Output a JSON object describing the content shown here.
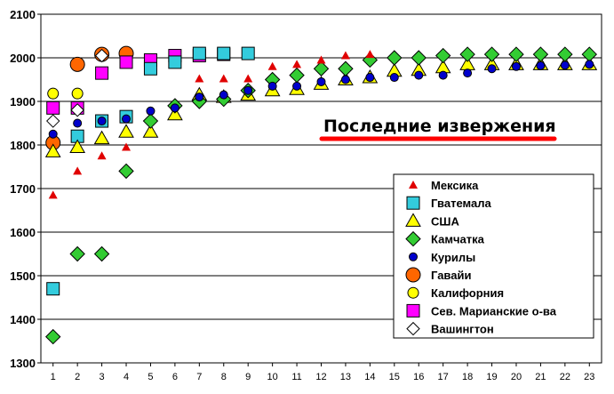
{
  "chart_data": {
    "type": "scatter",
    "title": "",
    "xlabel": "",
    "ylabel": "",
    "xlim": [
      0.5,
      23.5
    ],
    "ylim": [
      1300,
      2100
    ],
    "yticks": [
      1300,
      1400,
      1500,
      1600,
      1700,
      1800,
      1900,
      2000,
      2100
    ],
    "xticks": [
      1,
      2,
      3,
      4,
      5,
      6,
      7,
      8,
      9,
      10,
      11,
      12,
      13,
      14,
      15,
      16,
      17,
      18,
      19,
      20,
      21,
      22,
      23
    ],
    "grid": "horizontal",
    "legend_position": "bottom-right",
    "annotation": "Последние извержения",
    "series": [
      {
        "name": "Мексика",
        "marker": "triangle-small",
        "color": "#e00000",
        "points": [
          [
            1,
            1685
          ],
          [
            2,
            1740
          ],
          [
            3,
            1775
          ],
          [
            4,
            1795
          ],
          [
            7,
            1952
          ],
          [
            8,
            1952
          ],
          [
            9,
            1952
          ],
          [
            10,
            1980
          ],
          [
            11,
            1985
          ],
          [
            12,
            1995
          ],
          [
            13,
            2005
          ],
          [
            14,
            2008
          ]
        ]
      },
      {
        "name": "Гватемала",
        "marker": "square",
        "color": "#33ccdd",
        "points": [
          [
            1,
            1470
          ],
          [
            2,
            1820
          ],
          [
            3,
            1855
          ],
          [
            4,
            1865
          ],
          [
            5,
            1975
          ],
          [
            6,
            1990
          ],
          [
            7,
            2010
          ],
          [
            8,
            2010
          ],
          [
            9,
            2010
          ]
        ]
      },
      {
        "name": "США",
        "marker": "triangle",
        "color": "#ffff00",
        "points": [
          [
            1,
            1785
          ],
          [
            2,
            1795
          ],
          [
            3,
            1815
          ],
          [
            4,
            1830
          ],
          [
            5,
            1830
          ],
          [
            6,
            1870
          ],
          [
            7,
            1915
          ],
          [
            8,
            1910
          ],
          [
            9,
            1915
          ],
          [
            10,
            1925
          ],
          [
            11,
            1928
          ],
          [
            12,
            1940
          ],
          [
            13,
            1950
          ],
          [
            14,
            1955
          ],
          [
            15,
            1970
          ],
          [
            16,
            1972
          ],
          [
            17,
            1978
          ],
          [
            18,
            1985
          ],
          [
            19,
            1985
          ],
          [
            20,
            1985
          ],
          [
            21,
            1985
          ],
          [
            22,
            1985
          ],
          [
            23,
            1985
          ]
        ]
      },
      {
        "name": "Камчатка",
        "marker": "diamond",
        "color": "#33cc33",
        "points": [
          [
            1,
            1360
          ],
          [
            2,
            1550
          ],
          [
            3,
            1550
          ],
          [
            4,
            1740
          ],
          [
            5,
            1855
          ],
          [
            6,
            1890
          ],
          [
            7,
            1900
          ],
          [
            8,
            1905
          ],
          [
            9,
            1925
          ],
          [
            10,
            1950
          ],
          [
            11,
            1960
          ],
          [
            12,
            1975
          ],
          [
            13,
            1975
          ],
          [
            14,
            1995
          ],
          [
            15,
            2000
          ],
          [
            16,
            2000
          ],
          [
            17,
            2005
          ],
          [
            18,
            2008
          ],
          [
            19,
            2008
          ],
          [
            20,
            2008
          ],
          [
            21,
            2008
          ],
          [
            22,
            2008
          ],
          [
            23,
            2008
          ]
        ]
      },
      {
        "name": "Курилы",
        "marker": "circle-small",
        "color": "#0000cc",
        "points": [
          [
            1,
            1825
          ],
          [
            2,
            1850
          ],
          [
            3,
            1855
          ],
          [
            4,
            1860
          ],
          [
            5,
            1878
          ],
          [
            6,
            1885
          ],
          [
            7,
            1910
          ],
          [
            8,
            1915
          ],
          [
            9,
            1925
          ],
          [
            10,
            1935
          ],
          [
            11,
            1935
          ],
          [
            12,
            1945
          ],
          [
            13,
            1950
          ],
          [
            14,
            1955
          ],
          [
            15,
            1955
          ],
          [
            16,
            1960
          ],
          [
            17,
            1960
          ],
          [
            18,
            1965
          ],
          [
            19,
            1975
          ],
          [
            20,
            1980
          ],
          [
            21,
            1982
          ],
          [
            22,
            1983
          ],
          [
            23,
            1985
          ]
        ]
      },
      {
        "name": "Гавайи",
        "marker": "circle",
        "color": "#ff6600",
        "points": [
          [
            1,
            1805
          ],
          [
            2,
            1985
          ],
          [
            3,
            2008
          ],
          [
            4,
            2010
          ]
        ]
      },
      {
        "name": "Калифорния",
        "marker": "circle-medium",
        "color": "#ffff00",
        "points": [
          [
            1,
            1918
          ],
          [
            2,
            1918
          ]
        ]
      },
      {
        "name": "Сев. Марианские о-ва",
        "marker": "square",
        "color": "#ff00ff",
        "points": [
          [
            1,
            1885
          ],
          [
            2,
            1885
          ],
          [
            3,
            1965
          ],
          [
            4,
            1990
          ],
          [
            5,
            1995
          ],
          [
            6,
            2005
          ],
          [
            7,
            2005
          ],
          [
            8,
            2008
          ]
        ]
      },
      {
        "name": "Вашингтон",
        "marker": "diamond-open",
        "color": "#ffffff",
        "points": [
          [
            1,
            1855
          ],
          [
            2,
            1880
          ],
          [
            3,
            2005
          ]
        ]
      }
    ]
  }
}
